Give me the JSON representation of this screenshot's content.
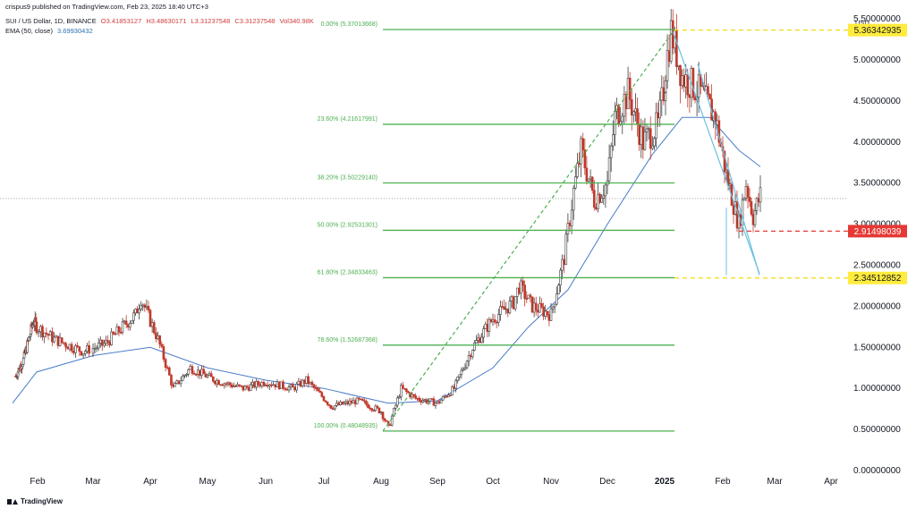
{
  "header": {
    "published": "crispus9 published on TradingView.com, Feb 23, 2025 18:40 UTC+3",
    "symbol": "SUI / US Dollar, 1D, BINANCE",
    "open": "O3.41853127",
    "high": "H3.48630171",
    "low": "L3.31237548",
    "close": "C3.31237548",
    "volume": "Vol340.98K",
    "ema_label": "EMA (50, close)",
    "ema_value": "3.69930432"
  },
  "currency": "USD",
  "brand": "TradingView",
  "colors": {
    "fib": "#4caf50",
    "up": "#26a69a",
    "down": "#ef5350",
    "candle": "#5b5b5b",
    "ema": "#4a7cc9",
    "channel": "#6cc0e0",
    "marker_yellow": "#ffeb3b",
    "marker_red": "#e53935"
  },
  "chart_data": {
    "type": "candlestick",
    "y_ticks": [
      "5.50000000",
      "5.00000000",
      "4.50000000",
      "4.00000000",
      "3.50000000",
      "3.00000000",
      "2.50000000",
      "2.00000000",
      "1.50000000",
      "1.00000000",
      "0.50000000",
      "0.00000000"
    ],
    "x_ticks": [
      "Feb",
      "Mar",
      "Apr",
      "May",
      "Jun",
      "Jul",
      "Aug",
      "Sep",
      "Oct",
      "Nov",
      "Dec",
      "2025",
      "Feb",
      "Mar",
      "Apr"
    ],
    "fib_levels": [
      {
        "label": "0.00% (5.37013668)",
        "value": 5.37013668
      },
      {
        "label": "23.60% (4.21617991)",
        "value": 4.21617991
      },
      {
        "label": "38.20% (3.50229140)",
        "value": 3.5022914
      },
      {
        "label": "50.00% (2.92531301)",
        "value": 2.92531301
      },
      {
        "label": "61.80% (2.34833463)",
        "value": 2.34833463
      },
      {
        "label": "78.60% (1.52687368)",
        "value": 1.52687368
      },
      {
        "label": "100.00% (0.48048935)",
        "value": 0.48048935
      }
    ],
    "price_markers": [
      {
        "label": "5.36342935",
        "value": 5.36342935,
        "color": "yellow"
      },
      {
        "label": "2.91498039",
        "value": 2.91498039,
        "color": "red"
      },
      {
        "label": "2.34512852",
        "value": 2.34512852,
        "color": "yellow"
      }
    ],
    "last_price": 3.31237548,
    "price_path": [
      [
        "Jan 5",
        1.15
      ],
      [
        "Jan 15",
        1.35
      ],
      [
        "Jan 28",
        1.82
      ],
      [
        "Feb 10",
        1.6
      ],
      [
        "Feb 25",
        1.45
      ],
      [
        "Mar 8",
        1.55
      ],
      [
        "Mar 24",
        1.9
      ],
      [
        "Mar 27",
        2.1
      ],
      [
        "Apr 5",
        1.6
      ],
      [
        "Apr 13",
        1.0
      ],
      [
        "Apr 22",
        1.25
      ],
      [
        "May 5",
        1.1
      ],
      [
        "May 20",
        1.0
      ],
      [
        "Jun 1",
        1.08
      ],
      [
        "Jun 15",
        1.0
      ],
      [
        "Jun 22",
        1.1
      ],
      [
        "Jul 5",
        0.78
      ],
      [
        "Jul 20",
        0.85
      ],
      [
        "Aug 1",
        0.72
      ],
      [
        "Aug 5",
        0.52
      ],
      [
        "Aug 12",
        1.0
      ],
      [
        "Aug 20",
        0.88
      ],
      [
        "Sep 1",
        0.82
      ],
      [
        "Sep 10",
        1.0
      ],
      [
        "Sep 20",
        1.5
      ],
      [
        "Oct 1",
        1.85
      ],
      [
        "Oct 12",
        2.05
      ],
      [
        "Oct 15",
        2.25
      ],
      [
        "Oct 22",
        2.0
      ],
      [
        "Nov 1",
        1.9
      ],
      [
        "Nov 8",
        2.6
      ],
      [
        "Nov 13",
        3.4
      ],
      [
        "Nov 17",
        3.9
      ],
      [
        "Nov 24",
        3.3
      ],
      [
        "Dec 1",
        3.5
      ],
      [
        "Dec 5",
        4.3
      ],
      [
        "Dec 12",
        4.6
      ],
      [
        "Dec 20",
        4.0
      ],
      [
        "Dec 28",
        4.2
      ],
      [
        "Jan 4",
        5.35
      ],
      [
        "Jan 10",
        4.8
      ],
      [
        "Jan 20",
        4.6
      ],
      [
        "Jan 28",
        4.3
      ],
      [
        "Feb 3",
        3.6
      ],
      [
        "Feb 10",
        3.0
      ],
      [
        "Feb 14",
        3.5
      ],
      [
        "Feb 18",
        3.1
      ],
      [
        "Feb 22",
        3.35
      ]
    ],
    "ema_path": [
      [
        "Jan 1",
        0.82
      ],
      [
        "Feb 1",
        1.2
      ],
      [
        "Mar 1",
        1.4
      ],
      [
        "Apr 1",
        1.5
      ],
      [
        "May 1",
        1.25
      ],
      [
        "Jun 1",
        1.1
      ],
      [
        "Jul 1",
        1.0
      ],
      [
        "Aug 5",
        0.82
      ],
      [
        "Sep 1",
        0.85
      ],
      [
        "Oct 1",
        1.25
      ],
      [
        "Oct 20",
        1.75
      ],
      [
        "Nov 10",
        2.2
      ],
      [
        "Dec 1",
        3.0
      ],
      [
        "Dec 25",
        3.85
      ],
      [
        "Jan 10",
        4.3
      ],
      [
        "Jan 25",
        4.3
      ],
      [
        "Feb 10",
        3.9
      ],
      [
        "Feb 22",
        3.7
      ]
    ]
  }
}
